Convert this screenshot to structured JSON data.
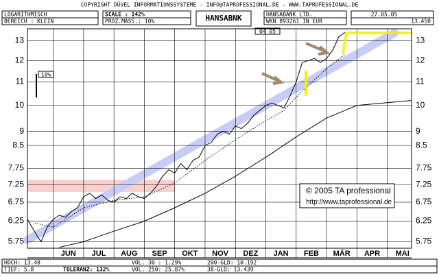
{
  "header": {
    "copyright": "COPYRIGHT  DÜVEL INFORMATIONSSYSTEME  -  INFO@TAPROFESSIONAL.DE  -  WWW.TAPROFESSIONAL.DE",
    "scale_mode": "LOGARITHMISCH",
    "range": "BEREICH : KLEIN",
    "scale": "SCALE : 142%",
    "percent_measure": "PROZ.MASS.: 10%",
    "symbol": "HANSABNK",
    "company": "HANSABANK LTD.",
    "wkn": "WKN 893261    IN EUR",
    "date": "27.05.05",
    "last": "13.450",
    "period": "04 05",
    "measure_label": "10%"
  },
  "footer": {
    "high": "HOCH: 13.48",
    "low": "TIEF: 5.8",
    "tolerance": "TOLERANZ: 132%",
    "vol30": "VOL. 30  : 1.29%",
    "vol250": "VOL. 250: 25.87%",
    "gld200": "200-GLD: 10.192",
    "gld38": "38-GLD: 13.439"
  },
  "watermark": {
    "line1": "© 2005 TA professional",
    "line2": "http://www.taprofessional.de"
  },
  "chart_data": {
    "type": "line",
    "log_scale": true,
    "grid": true,
    "categories": [
      "JUN",
      "JUL",
      "AUG",
      "SEP",
      "OKT",
      "NOV",
      "DEZ",
      "JAN",
      "FEB",
      "MÄR",
      "APR",
      "MAI"
    ],
    "xlim": [
      -0.85,
      11.8
    ],
    "ylim": [
      5.6,
      13.65
    ],
    "yticks": [
      5.75,
      6.25,
      6.75,
      7.25,
      7.75,
      8.5,
      9,
      10,
      11,
      12,
      13
    ],
    "series": [
      {
        "color": "#000000",
        "style": "solid",
        "x": [
          -0.85,
          -0.7,
          -0.5,
          -0.4,
          -0.2,
          0,
          0.2,
          0.4,
          0.6,
          0.8,
          1.0,
          1.2,
          1.4,
          1.6,
          1.8,
          2.0,
          2.2,
          2.4,
          2.6,
          2.8,
          3.0,
          3.2,
          3.4,
          3.6,
          3.8,
          4.0,
          4.2,
          4.4,
          4.6,
          4.8,
          5.0,
          5.2,
          5.4,
          5.6,
          5.8,
          6.0,
          6.2,
          6.4,
          6.6,
          6.8,
          7.0,
          7.2,
          7.4,
          7.6,
          7.8,
          8.0,
          8.2,
          8.4,
          8.6,
          8.8,
          9.0,
          9.2,
          9.4,
          9.6
        ],
        "values": [
          6.3,
          6.1,
          5.85,
          5.75,
          6.1,
          6.3,
          6.4,
          6.35,
          6.5,
          6.6,
          6.9,
          7.0,
          6.85,
          6.95,
          6.8,
          6.75,
          6.9,
          6.85,
          7.0,
          6.9,
          6.85,
          7.0,
          7.2,
          7.5,
          7.7,
          7.6,
          7.9,
          7.7,
          8.0,
          8.1,
          8.5,
          8.6,
          8.9,
          9.0,
          8.9,
          9.2,
          9.1,
          9.3,
          9.6,
          9.8,
          10.0,
          10.1,
          10.0,
          9.9,
          10.4,
          11.0,
          11.9,
          12.0,
          12.1,
          11.9,
          12.1,
          12.5,
          13.2,
          13.45
        ]
      },
      {
        "color": "#000000",
        "style": "dotted",
        "x": [
          -0.6,
          0,
          1,
          2,
          3,
          4,
          5,
          6,
          7,
          7.6,
          8.2,
          9,
          9.6
        ],
        "values": [
          6.2,
          6.1,
          6.6,
          6.8,
          6.9,
          7.3,
          8.0,
          8.7,
          9.4,
          9.8,
          10.6,
          11.6,
          12.3
        ]
      },
      {
        "color": "#000000",
        "style": "solid",
        "x": [
          0.2,
          1,
          2,
          3,
          4,
          5,
          6,
          7,
          8,
          9,
          10,
          11.78
        ],
        "values": [
          5.62,
          5.75,
          6.0,
          6.25,
          6.6,
          7.0,
          7.5,
          8.1,
          8.8,
          9.5,
          10.0,
          10.2
        ]
      }
    ]
  }
}
